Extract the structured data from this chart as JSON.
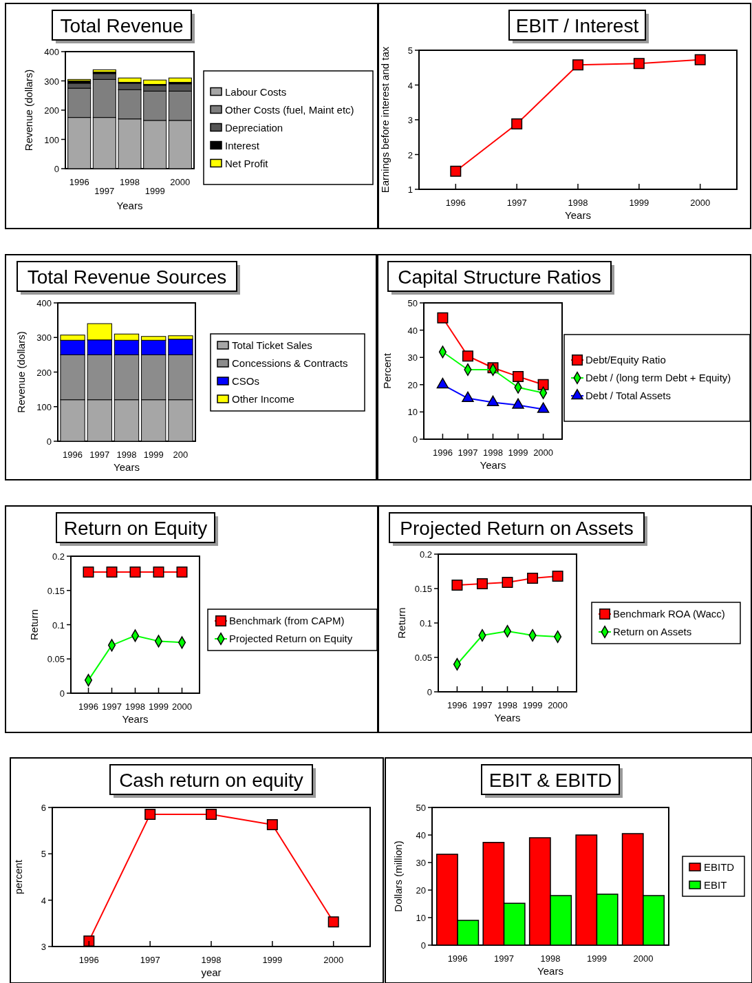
{
  "chart_data": [
    {
      "type": "bar",
      "title": "Total Revenue",
      "xlabel": "Years",
      "ylabel": "Revenue (dollars)",
      "categories": [
        "1996",
        "1997",
        "1998",
        "1999",
        "2000"
      ],
      "stacked": true,
      "legend": "right",
      "ylim": [
        0,
        400
      ],
      "yticks": [
        0,
        100,
        200,
        300,
        400
      ],
      "series": [
        {
          "name": "Labour Costs",
          "color": "#a6a6a6",
          "values": [
            175,
            175,
            170,
            165,
            165
          ]
        },
        {
          "name": "Other Costs (fuel, Maint etc)",
          "color": "#7f7f7f",
          "values": [
            100,
            130,
            100,
            100,
            100
          ]
        },
        {
          "name": "Depreciation",
          "color": "#555555",
          "values": [
            17,
            20,
            22,
            20,
            25
          ]
        },
        {
          "name": "Interest",
          "color": "#000000",
          "values": [
            8,
            5,
            3,
            3,
            5
          ]
        },
        {
          "name": "Net Profit",
          "color": "#ffff00",
          "values": [
            5,
            8,
            15,
            15,
            15
          ]
        }
      ]
    },
    {
      "type": "line",
      "title": "EBIT / Interest",
      "xlabel": "Years",
      "ylabel": "Earnings before interest and tax",
      "categories": [
        "1996",
        "1997",
        "1998",
        "1999",
        "2000"
      ],
      "ylim": [
        1,
        5
      ],
      "yticks": [
        1,
        2,
        3,
        4,
        5
      ],
      "series": [
        {
          "color": "#ff0000",
          "marker": "square",
          "values": [
            1.52,
            2.88,
            4.58,
            4.62,
            4.73
          ]
        }
      ]
    },
    {
      "type": "bar",
      "title": "Total Revenue Sources",
      "xlabel": "Years",
      "ylabel": "Revenue (dollars)",
      "categories": [
        "1996",
        "1997",
        "1998",
        "1999",
        "200"
      ],
      "stacked": true,
      "legend": "right",
      "ylim": [
        0,
        400
      ],
      "yticks": [
        0,
        100,
        200,
        300,
        400
      ],
      "series": [
        {
          "name": "Total Ticket Sales",
          "color": "#a6a6a6",
          "values": [
            120,
            120,
            120,
            120,
            120
          ]
        },
        {
          "name": "Concessions & Contracts",
          "color": "#8c8c8c",
          "values": [
            130,
            130,
            130,
            130,
            130
          ]
        },
        {
          "name": "CSOs",
          "color": "#0000ff",
          "values": [
            42,
            43,
            42,
            42,
            45
          ]
        },
        {
          "name": "Other Income",
          "color": "#ffff00",
          "values": [
            15,
            47,
            18,
            11,
            10
          ]
        }
      ]
    },
    {
      "type": "line",
      "title": "Capital Structure Ratios",
      "xlabel": "Years",
      "ylabel": "Percent",
      "categories": [
        "1996",
        "1997",
        "1998",
        "1999",
        "2000"
      ],
      "legend": "right",
      "ylim": [
        0,
        50
      ],
      "yticks": [
        0,
        10,
        20,
        30,
        40,
        50
      ],
      "series": [
        {
          "name": "Debt/Equity Ratio",
          "color": "#ff0000",
          "marker": "square",
          "values": [
            44.5,
            30.5,
            26.2,
            23,
            20
          ]
        },
        {
          "name": "Debt / (long term Debt + Equity)",
          "color": "#00ff00",
          "marker": "diamond",
          "values": [
            32,
            25.5,
            25.5,
            19,
            17
          ]
        },
        {
          "name": "Debt / Total Assets",
          "color": "#0000ff",
          "marker": "triangle",
          "values": [
            20,
            15,
            13.5,
            12.5,
            11
          ]
        }
      ]
    },
    {
      "type": "line",
      "title": "Return on Equity",
      "xlabel": "Years",
      "ylabel": "Return",
      "categories": [
        "1996",
        "1997",
        "1998",
        "1999",
        "2000"
      ],
      "legend": "right",
      "ylim": [
        0,
        0.2
      ],
      "yticks": [
        0,
        0.05,
        0.1,
        0.15,
        0.2
      ],
      "series": [
        {
          "name": "Benchmark (from CAPM)",
          "color": "#ff0000",
          "marker": "square",
          "values": [
            0.177,
            0.177,
            0.177,
            0.177,
            0.177
          ]
        },
        {
          "name": "Projected Return on Equity",
          "color": "#00ff00",
          "marker": "diamond",
          "values": [
            0.019,
            0.07,
            0.084,
            0.076,
            0.074
          ]
        }
      ]
    },
    {
      "type": "line",
      "title": "Projected Return on Assets",
      "xlabel": "Years",
      "ylabel": "Return",
      "categories": [
        "1996",
        "1997",
        "1998",
        "1999",
        "2000"
      ],
      "legend": "right",
      "ylim": [
        0,
        0.2
      ],
      "yticks": [
        0,
        0.05,
        0.1,
        0.15,
        0.2
      ],
      "series": [
        {
          "name": "Benchmark ROA (Wacc)",
          "color": "#ff0000",
          "marker": "square",
          "values": [
            0.155,
            0.157,
            0.159,
            0.165,
            0.168
          ]
        },
        {
          "name": "Return on Assets",
          "color": "#00ff00",
          "marker": "diamond",
          "values": [
            0.04,
            0.082,
            0.088,
            0.082,
            0.08
          ]
        }
      ]
    },
    {
      "type": "line",
      "title": "Cash return on equity",
      "xlabel": "year",
      "ylabel": "percent",
      "categories": [
        "1996",
        "1997",
        "1998",
        "1999",
        "2000"
      ],
      "ylim": [
        3,
        6
      ],
      "yticks": [
        3,
        4,
        5,
        6
      ],
      "series": [
        {
          "color": "#ff0000",
          "marker": "square",
          "values": [
            3.12,
            5.85,
            5.85,
            5.63,
            3.53
          ]
        }
      ]
    },
    {
      "type": "bar",
      "title": "EBIT & EBITD",
      "xlabel": "Years",
      "ylabel": "Dollars (million)",
      "categories": [
        "1996",
        "1997",
        "1998",
        "1999",
        "2000"
      ],
      "legend": "right",
      "ylim": [
        0,
        50
      ],
      "yticks": [
        0,
        10,
        20,
        30,
        40,
        50
      ],
      "series": [
        {
          "name": "EBITD",
          "color": "#ff0000",
          "values": [
            33,
            37.3,
            39,
            40,
            40.5
          ]
        },
        {
          "name": "EBIT",
          "color": "#00ff00",
          "values": [
            9,
            15.2,
            18,
            18.5,
            18
          ]
        }
      ]
    }
  ]
}
